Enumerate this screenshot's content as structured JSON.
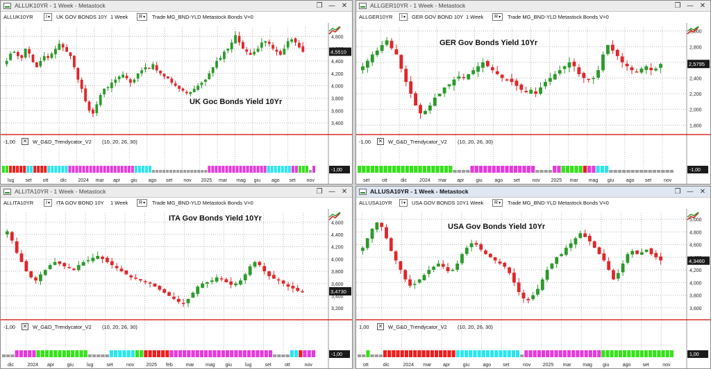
{
  "colors": {
    "up": "#2b9a2b",
    "down": "#e0262a",
    "grid": "#b8b8b8",
    "threshold": "#d40000",
    "bar_green": "#35e21a",
    "bar_red": "#ef1d1d",
    "bar_gray": "#9c9c9c",
    "bar_cyan": "#2ce5ef",
    "bar_magenta": "#e53bdb",
    "price_tag": "#1b1b1b"
  },
  "panes": [
    {
      "id": "uk",
      "title": "ALLUK10YR - 1 Week - Metastock",
      "active": false,
      "toolbar": {
        "symbol": "ALLUK10YR",
        "name": "UK GOV BONDS 10Y",
        "period": "1 Week",
        "mode": "R",
        "extra": "Trade  MG_BND-YLD  Metastock  Bonds  V=0",
        "i_label": "I"
      },
      "label": "UK Goc Bonds Yield 10Yr",
      "indicator": {
        "name": "W_G&D_Trendycator_V2",
        "params": "(10, 20, 26, 30)"
      },
      "threshold_label": "-1,00",
      "ind_value": "-1,00",
      "price_tag": "4,5510",
      "y_ticks": [
        "4,800",
        "4,600",
        "4,400",
        "4,200",
        "4,000",
        "3,800",
        "3,600",
        "3,400"
      ],
      "x_labels": [
        "lug",
        "set",
        "ott",
        "dic",
        "2024",
        "mar",
        "apr",
        "giu",
        "ago",
        "set",
        "nov",
        "2025",
        "mar",
        "mag",
        "giu",
        "ago",
        "set",
        "nov"
      ],
      "chart_data": {
        "type": "candlestick",
        "ylim": [
          3.3,
          4.95
        ],
        "weeks": 104,
        "values": [
          4.4,
          4.52,
          4.55,
          4.48,
          4.45,
          4.6,
          4.52,
          4.38,
          4.3,
          4.4,
          4.48,
          4.45,
          4.52,
          4.6,
          4.68,
          4.62,
          4.55,
          4.48,
          4.3,
          4.1,
          3.95,
          3.75,
          3.6,
          3.55,
          3.7,
          3.85,
          3.95,
          3.98,
          4.05,
          4.1,
          4.15,
          4.18,
          4.12,
          4.05,
          4.1,
          4.2,
          4.25,
          4.3,
          4.28,
          4.35,
          4.25,
          4.2,
          4.15,
          4.12,
          4.05,
          4.0,
          3.95,
          3.92,
          3.88,
          3.9,
          3.95,
          4.0,
          4.05,
          4.1,
          4.2,
          4.3,
          4.4,
          4.45,
          4.55,
          4.6,
          4.7,
          4.82,
          4.7,
          4.6,
          4.55,
          4.5,
          4.55,
          4.6,
          4.7,
          4.72,
          4.68,
          4.6,
          4.55,
          4.5,
          4.6,
          4.72,
          4.75,
          4.7,
          4.62,
          4.55
        ]
      }
    },
    {
      "id": "ger",
      "title": "ALLGER10YR - 1 Week - Metastock",
      "active": false,
      "toolbar": {
        "symbol": "ALLGER10YR",
        "name": "GER GOV BOND 10Y",
        "period": "1 Week",
        "mode": "R",
        "extra": "Trade  MG_BND-YLD  Metastock  Bonds  V=0",
        "i_label": "I"
      },
      "label": "GER Gov Bonds Yield 10Yr",
      "indicator": {
        "name": "W_G&D_Trendycator_V2",
        "params": "(10, 20, 26, 30)"
      },
      "threshold_label": "-1,00",
      "ind_value": "-1,00",
      "price_tag": "2,5795",
      "y_ticks": [
        "3,000",
        "2,800",
        "2,600",
        "2,400",
        "2,200",
        "2,000",
        "1,800"
      ],
      "x_labels": [
        "set",
        "ott",
        "dic",
        "2024",
        "mar",
        "apr",
        "giu",
        "ago",
        "set",
        "nov",
        "2025",
        "mar",
        "mag",
        "giu",
        "ago",
        "set",
        "nov"
      ],
      "chart_data": {
        "type": "candlestick",
        "ylim": [
          1.75,
          3.05
        ],
        "weeks": 104,
        "values": [
          2.55,
          2.62,
          2.7,
          2.75,
          2.82,
          2.88,
          2.78,
          2.7,
          2.52,
          2.35,
          2.2,
          2.05,
          1.95,
          1.98,
          2.05,
          2.15,
          2.2,
          2.28,
          2.32,
          2.38,
          2.42,
          2.4,
          2.45,
          2.5,
          2.55,
          2.6,
          2.55,
          2.5,
          2.45,
          2.4,
          2.38,
          2.35,
          2.3,
          2.25,
          2.22,
          2.25,
          2.2,
          2.28,
          2.35,
          2.4,
          2.45,
          2.5,
          2.55,
          2.6,
          2.55,
          2.45,
          2.4,
          2.38,
          2.4,
          2.5,
          2.7,
          2.82,
          2.75,
          2.68,
          2.6,
          2.55,
          2.5,
          2.48,
          2.52,
          2.55,
          2.5,
          2.52,
          2.58
        ]
      }
    },
    {
      "id": "ita",
      "title": "ALLITA10YR - 1 Week - Metastock",
      "active": false,
      "toolbar": {
        "symbol": "ALLITA10YR",
        "name": "ITA GOV BOND 10Y",
        "period": "1 Week",
        "mode": "R",
        "extra": "Trade  MG_BND-YLD  Metastock  Bonds  V=0",
        "i_label": "I"
      },
      "label": "ITA Gov Bonds Yield 10Yr",
      "indicator": {
        "name": "W_G&D_Trendycator_V2",
        "params": "(10, 20, 26, 30)"
      },
      "threshold_label": "-1,00",
      "ind_value": "-1,00",
      "price_tag": "3,4730",
      "y_ticks": [
        "4,600",
        "4,400",
        "4,200",
        "4,000",
        "3,800",
        "3,600",
        "3,400",
        "3,200"
      ],
      "x_labels": [
        "dic",
        "2024",
        "apr",
        "giu",
        "lug",
        "set",
        "nov",
        "2025",
        "feb",
        "mar",
        "mag",
        "giu",
        "lug",
        "set",
        "ott",
        "nov"
      ],
      "chart_data": {
        "type": "candlestick",
        "ylim": [
          3.1,
          4.75
        ],
        "weeks": 104,
        "values": [
          4.45,
          4.3,
          4.1,
          3.95,
          3.8,
          3.7,
          3.65,
          3.75,
          3.82,
          3.9,
          3.95,
          3.92,
          3.88,
          3.85,
          3.82,
          3.9,
          3.95,
          3.98,
          4.02,
          4.05,
          4.0,
          3.95,
          3.9,
          3.85,
          3.8,
          3.75,
          3.7,
          3.68,
          3.65,
          3.62,
          3.6,
          3.55,
          3.5,
          3.45,
          3.4,
          3.35,
          3.3,
          3.28,
          3.35,
          3.45,
          3.55,
          3.6,
          3.62,
          3.65,
          3.7,
          3.68,
          3.62,
          3.58,
          3.6,
          3.65,
          3.75,
          3.88,
          3.95,
          3.9,
          3.8,
          3.72,
          3.68,
          3.65,
          3.6,
          3.55,
          3.52,
          3.48,
          3.47
        ]
      }
    },
    {
      "id": "usa",
      "title": "ALLUSA10YR - 1 Week - Metastock",
      "active": true,
      "toolbar": {
        "symbol": "ALLUSA10YR",
        "name": "USA GOV BONDS 10Y",
        "period": "1 Week",
        "mode": "R",
        "extra": "Trade  MG_BND-YLD  Metastock  Bonds  V=0",
        "i_label": "I"
      },
      "label": "USA Gov Bonds Yield 10Yr",
      "indicator": {
        "name": "W_G&D_Trendycator_V2",
        "params": "(10, 20, 26, 30)"
      },
      "threshold_label": "1,00",
      "ind_value": "1,00",
      "price_tag": "4,3460",
      "y_ticks": [
        "5,000",
        "4,800",
        "4,600",
        "4,400",
        "4,200",
        "4,000",
        "3,800",
        "3,600"
      ],
      "x_labels": [
        "ott",
        "dic",
        "2024",
        "mar",
        "apr",
        "giu",
        "ago",
        "set",
        "nov",
        "2025",
        "mar",
        "mag",
        "giu",
        "ago",
        "set",
        "nov"
      ],
      "chart_data": {
        "type": "candlestick",
        "ylim": [
          3.5,
          5.1
        ],
        "weeks": 104,
        "values": [
          4.55,
          4.7,
          4.85,
          4.95,
          4.88,
          4.7,
          4.5,
          4.35,
          4.2,
          4.05,
          3.95,
          3.98,
          4.05,
          4.12,
          4.2,
          4.25,
          4.3,
          4.25,
          4.18,
          4.2,
          4.3,
          4.45,
          4.55,
          4.62,
          4.6,
          4.52,
          4.45,
          4.4,
          4.35,
          4.3,
          4.25,
          4.15,
          4.0,
          3.85,
          3.75,
          3.72,
          3.8,
          3.9,
          4.05,
          4.2,
          4.3,
          4.4,
          4.45,
          4.55,
          4.62,
          4.7,
          4.78,
          4.72,
          4.65,
          4.55,
          4.45,
          4.35,
          4.2,
          4.05,
          4.15,
          4.3,
          4.45,
          4.5,
          4.45,
          4.48,
          4.52,
          4.45,
          4.4,
          4.35
        ]
      }
    }
  ]
}
